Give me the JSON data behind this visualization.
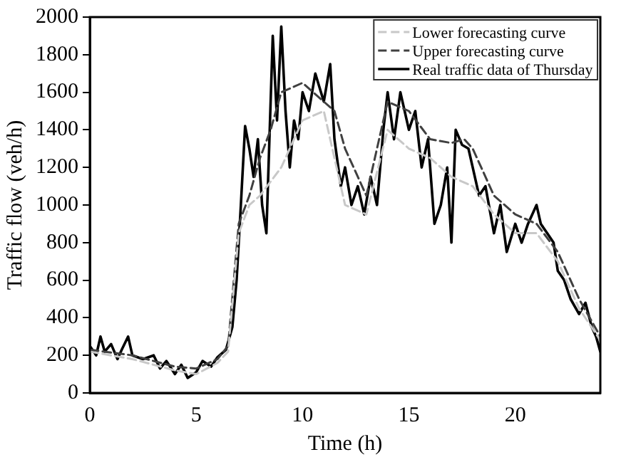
{
  "chart_data": {
    "type": "line",
    "xlabel": "Time (h)",
    "ylabel": "Traffic flow (veh/h)",
    "xlim": [
      0,
      24
    ],
    "ylim": [
      0,
      2000
    ],
    "xticks": [
      0,
      5,
      10,
      15,
      20
    ],
    "yticks": [
      0,
      200,
      400,
      600,
      800,
      1000,
      1200,
      1400,
      1600,
      1800,
      2000
    ],
    "grid": false,
    "legend": "top right",
    "marker": "none",
    "series": [
      {
        "name": "Lower forecasting curve",
        "color": "#c8c8c8",
        "line_style": "dashed",
        "x": [
          0,
          2,
          4,
          5,
          6,
          6.5,
          7,
          7.5,
          8,
          9,
          10,
          11,
          12,
          13,
          14,
          15,
          16,
          17,
          18,
          19,
          20,
          21,
          22,
          23,
          24
        ],
        "values": [
          220,
          180,
          120,
          100,
          160,
          220,
          850,
          1000,
          1050,
          1200,
          1450,
          1500,
          1000,
          950,
          1400,
          1300,
          1250,
          1150,
          1100,
          950,
          850,
          850,
          700,
          450,
          280
        ]
      },
      {
        "name": "Upper forecasting curve",
        "color": "#404040",
        "line_style": "dashed",
        "x": [
          0,
          2,
          4,
          5,
          6,
          6.5,
          7,
          7.5,
          8,
          8.5,
          9,
          10,
          11,
          11.5,
          12,
          13,
          14,
          15,
          16,
          17,
          17.6,
          18,
          19,
          20,
          21,
          22,
          23,
          24
        ],
        "values": [
          230,
          200,
          140,
          130,
          180,
          250,
          900,
          1050,
          1250,
          1400,
          1600,
          1650,
          1550,
          1500,
          1300,
          1050,
          1550,
          1500,
          1350,
          1330,
          1350,
          1300,
          1050,
          950,
          900,
          750,
          500,
          300
        ]
      },
      {
        "name": "Real traffic data of Thursday",
        "color": "#000000",
        "line_style": "solid",
        "x": [
          0,
          0.3,
          0.5,
          0.7,
          1,
          1.3,
          1.5,
          1.8,
          2,
          2.5,
          3,
          3.3,
          3.6,
          4,
          4.3,
          4.6,
          5,
          5.3,
          5.7,
          6,
          6.4,
          6.7,
          6.9,
          7.1,
          7.3,
          7.5,
          7.7,
          7.9,
          8.1,
          8.3,
          8.5,
          8.6,
          8.8,
          9,
          9.2,
          9.4,
          9.6,
          9.8,
          10,
          10.3,
          10.6,
          11,
          11.3,
          11.5,
          11.8,
          12,
          12.3,
          12.6,
          12.9,
          13.2,
          13.5,
          13.8,
          14,
          14.3,
          14.6,
          15,
          15.3,
          15.6,
          15.9,
          16.2,
          16.5,
          16.8,
          17,
          17.2,
          17.5,
          17.8,
          18,
          18.3,
          18.6,
          19,
          19.3,
          19.6,
          20,
          20.3,
          20.6,
          21,
          21.2,
          21.5,
          21.8,
          22,
          22.3,
          22.6,
          23,
          23.3,
          23.6,
          23.8,
          24
        ],
        "values": [
          250,
          200,
          300,
          220,
          260,
          180,
          230,
          300,
          200,
          180,
          200,
          130,
          170,
          100,
          150,
          80,
          110,
          170,
          140,
          190,
          230,
          350,
          600,
          1000,
          1420,
          1300,
          1150,
          1350,
          1000,
          850,
          1550,
          1900,
          1450,
          1950,
          1500,
          1200,
          1450,
          1350,
          1600,
          1500,
          1700,
          1550,
          1750,
          1350,
          1100,
          1200,
          1000,
          1100,
          950,
          1150,
          1000,
          1400,
          1600,
          1350,
          1600,
          1400,
          1500,
          1200,
          1350,
          900,
          1000,
          1200,
          800,
          1400,
          1320,
          1300,
          1200,
          1050,
          1100,
          850,
          1000,
          750,
          900,
          800,
          900,
          1000,
          900,
          850,
          800,
          650,
          600,
          500,
          420,
          480,
          350,
          300,
          220
        ]
      }
    ]
  }
}
